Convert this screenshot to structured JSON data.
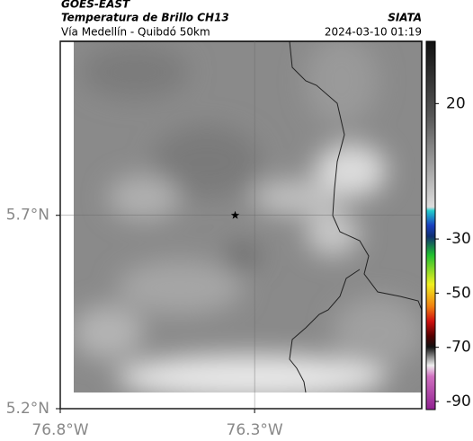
{
  "header": {
    "satellite": "GOES-EAST",
    "product": "Temperatura de Brillo CH13",
    "region": "Vía Medellín - Quibdó 50km",
    "source": "SIATA",
    "datetime": "2024-03-10 01:19"
  },
  "map": {
    "xlim": [
      -76.8,
      -75.87
    ],
    "ylim": [
      5.2,
      6.15
    ],
    "xticks": [
      {
        "value": -76.8,
        "label": "76.8°W"
      },
      {
        "value": -76.3,
        "label": "76.3°W"
      }
    ],
    "yticks": [
      {
        "value": 5.2,
        "label": "5.2°N"
      },
      {
        "value": 5.7,
        "label": "5.7°N"
      }
    ],
    "grid": true,
    "station": {
      "lon": -76.35,
      "lat": 5.7
    }
  },
  "colorbar": {
    "clim": [
      -93,
      43
    ],
    "ticks": [
      20,
      -30,
      -50,
      -70,
      -90
    ]
  }
}
